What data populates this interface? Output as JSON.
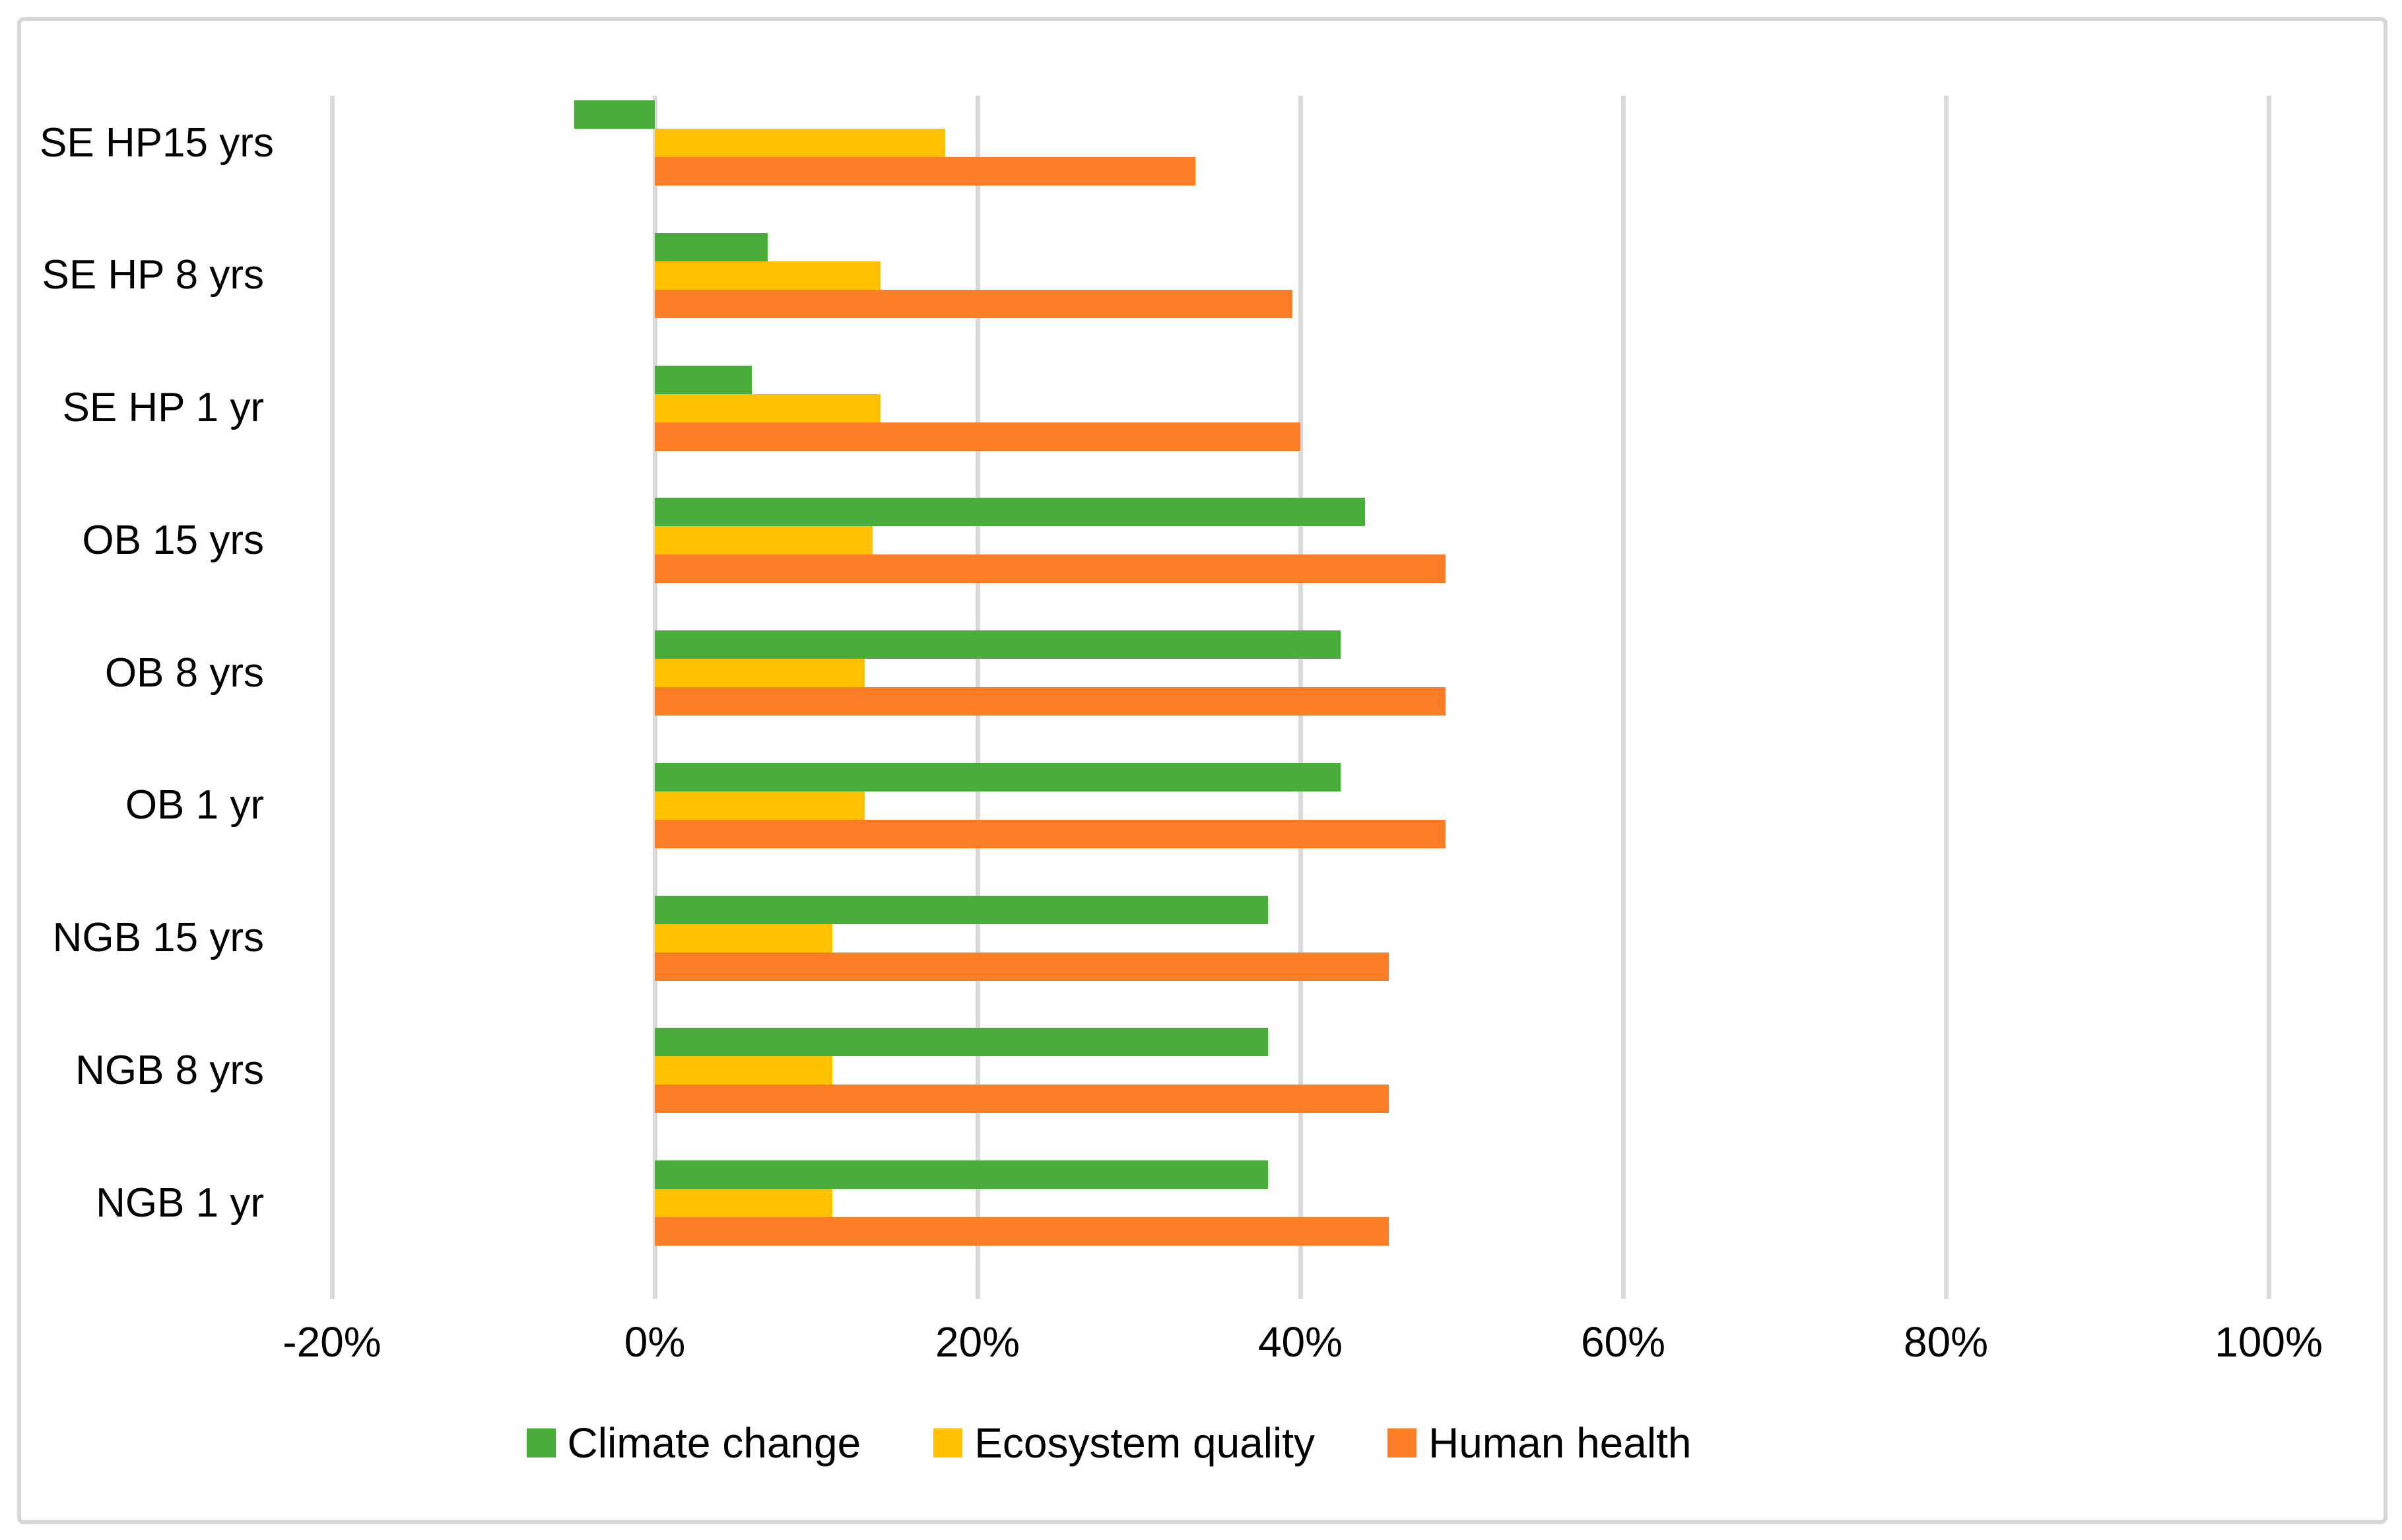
{
  "figure": {
    "title": "",
    "background_color": "#FFFFFF",
    "border_color": "#D7D7D7",
    "gridline_color": "#D9D9D9",
    "text_color": "#000000"
  },
  "chart_data": {
    "type": "bar",
    "orientation": "horizontal",
    "title": "",
    "xlabel": "",
    "ylabel": "",
    "grid": true,
    "legend_position": "bottom",
    "value_unit": "%",
    "xlim": [
      -20,
      100
    ],
    "x_ticks": [
      {
        "value": -20,
        "label": "-20%"
      },
      {
        "value": 0,
        "label": "0%"
      },
      {
        "value": 20,
        "label": "20%"
      },
      {
        "value": 40,
        "label": "40%"
      },
      {
        "value": 60,
        "label": "60%"
      },
      {
        "value": 80,
        "label": "80%"
      },
      {
        "value": 100,
        "label": "100%"
      }
    ],
    "categories": [
      "SE HP15 yrs",
      "SE HP 8 yrs",
      "SE HP 1 yr",
      "OB 15 yrs",
      "OB 8 yrs",
      "OB 1 yr",
      "NGB 15 yrs",
      "NGB 8 yrs",
      "NGB 1 yr"
    ],
    "series": [
      {
        "name": "Climate change",
        "color": "#4AAC3B",
        "values": [
          -5,
          7,
          6,
          44,
          42.5,
          42.5,
          38,
          38,
          38
        ]
      },
      {
        "name": "Ecosystem quality",
        "color": "#FFC000",
        "values": [
          18,
          14,
          14,
          13.5,
          13,
          13,
          11,
          11,
          11
        ]
      },
      {
        "name": "Human health",
        "color": "#FB7D26",
        "values": [
          33.5,
          39.5,
          40,
          49,
          49,
          49,
          45.5,
          45.5,
          45.5
        ]
      }
    ]
  }
}
